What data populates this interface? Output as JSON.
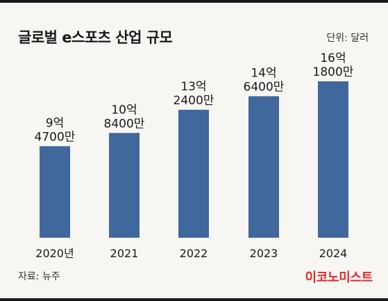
{
  "title": "글로벌 e스포츠 산업 규모",
  "unit": "단위: 달러",
  "source": "자료: 뉴주",
  "brand": "이코노미스트",
  "colors": {
    "bar": "#41689c",
    "brand": "#e8262d"
  },
  "chart_data": {
    "type": "bar",
    "categories": [
      "2020년",
      "2021",
      "2022",
      "2023",
      "2024"
    ],
    "values": [
      947000000,
      1084000000,
      1324000000,
      1464000000,
      1618000000
    ],
    "data_labels": [
      [
        "9억",
        "4700만"
      ],
      [
        "10억",
        "8400만"
      ],
      [
        "13억",
        "2400만"
      ],
      [
        "14억",
        "6400만"
      ],
      [
        "16억",
        "1800만"
      ]
    ],
    "grid": false,
    "legend": "none"
  }
}
